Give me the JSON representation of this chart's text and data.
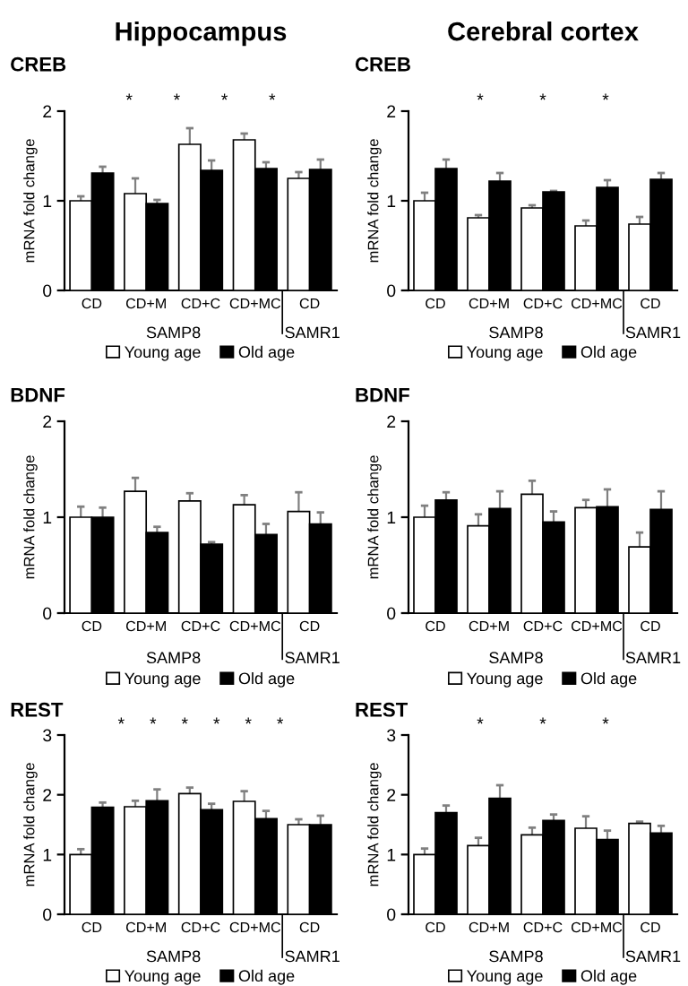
{
  "chart_data": [
    {
      "type": "bar",
      "title": "Hippocampus",
      "subtitle": "CREB",
      "ylabel": "mRNA fold change",
      "categories": [
        "CD",
        "CD+M",
        "CD+C",
        "CD+MC",
        "CD"
      ],
      "ylim": [
        0,
        2
      ],
      "yticks": [
        0,
        1,
        2
      ],
      "legend": "bottom",
      "annotations": [
        "SAMP8",
        "SAMR1",
        "*",
        "*",
        "*",
        "*"
      ],
      "series": [
        {
          "name": "Young age",
          "color": "#ffffff",
          "values": [
            1.0,
            1.08,
            1.63,
            1.68,
            1.25
          ],
          "errors": [
            0.05,
            0.17,
            0.18,
            0.07,
            0.07
          ]
        },
        {
          "name": "Old age",
          "color": "#000000",
          "values": [
            1.31,
            0.97,
            1.34,
            1.36,
            1.35
          ],
          "errors": [
            0.07,
            0.04,
            0.11,
            0.07,
            0.11
          ]
        }
      ]
    },
    {
      "type": "bar",
      "title": "Cerebral cortex",
      "subtitle": "CREB",
      "ylabel": "mRNA fold change",
      "categories": [
        "CD",
        "CD+M",
        "CD+C",
        "CD+MC",
        "CD"
      ],
      "ylim": [
        0,
        2
      ],
      "yticks": [
        0,
        1,
        2
      ],
      "legend": "bottom",
      "annotations": [
        "SAMP8",
        "SAMR1",
        "*",
        "*",
        "*"
      ],
      "series": [
        {
          "name": "Young age",
          "color": "#ffffff",
          "values": [
            1.0,
            0.81,
            0.92,
            0.72,
            0.74
          ],
          "errors": [
            0.09,
            0.03,
            0.03,
            0.06,
            0.08
          ]
        },
        {
          "name": "Old age",
          "color": "#000000",
          "values": [
            1.36,
            1.22,
            1.1,
            1.15,
            1.24
          ],
          "errors": [
            0.1,
            0.09,
            0.01,
            0.08,
            0.07
          ]
        }
      ]
    },
    {
      "type": "bar",
      "title": "BDNF",
      "ylabel": "mRNA fold change",
      "categories": [
        "CD",
        "CD+M",
        "CD+C",
        "CD+MC",
        "CD"
      ],
      "ylim": [
        0,
        2
      ],
      "yticks": [
        0,
        1,
        2
      ],
      "legend": "bottom",
      "annotations": [
        "SAMP8",
        "SAMR1"
      ],
      "series": [
        {
          "name": "Young age",
          "color": "#ffffff",
          "values": [
            1.0,
            1.27,
            1.17,
            1.13,
            1.06
          ],
          "errors": [
            0.11,
            0.14,
            0.08,
            0.1,
            0.2
          ]
        },
        {
          "name": "Old age",
          "color": "#000000",
          "values": [
            1.0,
            0.84,
            0.72,
            0.82,
            0.93
          ],
          "errors": [
            0.1,
            0.06,
            0.02,
            0.11,
            0.12
          ]
        }
      ]
    },
    {
      "type": "bar",
      "title": "BDNF",
      "ylabel": "mRNA fold change",
      "categories": [
        "CD",
        "CD+M",
        "CD+C",
        "CD+MC",
        "CD"
      ],
      "ylim": [
        0,
        2
      ],
      "yticks": [
        0,
        1,
        2
      ],
      "legend": "bottom",
      "annotations": [
        "SAMP8",
        "SAMR1"
      ],
      "series": [
        {
          "name": "Young age",
          "color": "#ffffff",
          "values": [
            1.0,
            0.91,
            1.24,
            1.1,
            0.69
          ],
          "errors": [
            0.12,
            0.12,
            0.14,
            0.08,
            0.15
          ]
        },
        {
          "name": "Old age",
          "color": "#000000",
          "values": [
            1.18,
            1.09,
            0.95,
            1.11,
            1.08
          ],
          "errors": [
            0.08,
            0.18,
            0.11,
            0.18,
            0.19
          ]
        }
      ]
    },
    {
      "type": "bar",
      "title": "REST",
      "ylabel": "mRNA fold change",
      "categories": [
        "CD",
        "CD+M",
        "CD+C",
        "CD+MC",
        "CD"
      ],
      "ylim": [
        0,
        3
      ],
      "yticks": [
        0,
        1,
        2,
        3
      ],
      "legend": "bottom",
      "annotations": [
        "SAMP8",
        "SAMR1",
        "*",
        "*",
        "*",
        "*",
        "*",
        "*"
      ],
      "series": [
        {
          "name": "Young age",
          "color": "#ffffff",
          "values": [
            1.0,
            1.8,
            2.02,
            1.89,
            1.5
          ],
          "errors": [
            0.09,
            0.1,
            0.1,
            0.17,
            0.09
          ]
        },
        {
          "name": "Old age",
          "color": "#000000",
          "values": [
            1.79,
            1.9,
            1.75,
            1.6,
            1.5
          ],
          "errors": [
            0.08,
            0.19,
            0.1,
            0.13,
            0.15
          ]
        }
      ]
    },
    {
      "type": "bar",
      "title": "REST",
      "ylabel": "mRNA fold change",
      "categories": [
        "CD",
        "CD+M",
        "CD+C",
        "CD+MC",
        "CD"
      ],
      "ylim": [
        0,
        3
      ],
      "yticks": [
        0,
        1,
        2,
        3
      ],
      "legend": "bottom",
      "annotations": [
        "SAMP8",
        "SAMR1",
        "*",
        "*",
        "*"
      ],
      "series": [
        {
          "name": "Young age",
          "color": "#ffffff",
          "values": [
            1.0,
            1.15,
            1.33,
            1.44,
            1.52
          ],
          "errors": [
            0.1,
            0.13,
            0.12,
            0.2,
            0.03
          ]
        },
        {
          "name": "Old age",
          "color": "#000000",
          "values": [
            1.7,
            1.94,
            1.57,
            1.25,
            1.36
          ],
          "errors": [
            0.12,
            0.22,
            0.1,
            0.15,
            0.12
          ]
        }
      ]
    }
  ]
}
